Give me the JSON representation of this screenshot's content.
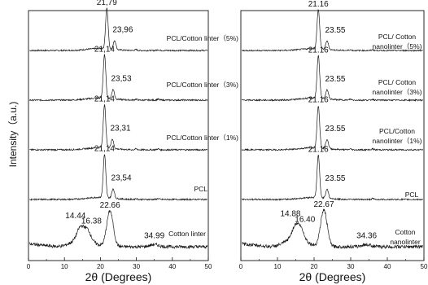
{
  "chart_data": [
    {
      "type": "line",
      "title": "",
      "xlabel": "2θ (Degrees)",
      "ylabel": "Intensity（a.u.)",
      "xlim": [
        0,
        50
      ],
      "xticks": [
        "0",
        "10",
        "20",
        "30",
        "40",
        "50"
      ],
      "grid": false,
      "series": [
        {
          "name": "PCL/Cotton linter（5%)",
          "type": "pcl",
          "peaks": [
            {
              "x": 21.79,
              "label": "21,79",
              "h": 1.0
            },
            {
              "x": 23.96,
              "label": "23,96",
              "h": 0.22
            }
          ]
        },
        {
          "name": "PCL/Cotton linter（3%)",
          "type": "pcl",
          "peaks": [
            {
              "x": 21.14,
              "label": "21,14",
              "h": 1.0
            },
            {
              "x": 23.53,
              "label": "23,53",
              "h": 0.22
            }
          ]
        },
        {
          "name": "PCL/Cotton linter（1%)",
          "type": "pcl",
          "peaks": [
            {
              "x": 21.14,
              "label": "21,14",
              "h": 1.0
            },
            {
              "x": 23.31,
              "label": "23,31",
              "h": 0.22
            }
          ]
        },
        {
          "name": "PCL",
          "type": "pcl",
          "peaks": [
            {
              "x": 21.14,
              "label": "21,14",
              "h": 1.0
            },
            {
              "x": 23.54,
              "label": "23,54",
              "h": 0.22
            }
          ]
        },
        {
          "name": "Cotton linter",
          "type": "cellulose",
          "peaks": [
            {
              "x": 14.44,
              "label": "14.44",
              "h": 0.3
            },
            {
              "x": 16.38,
              "label": "16.38",
              "h": 0.26
            },
            {
              "x": 22.66,
              "label": "22.66",
              "h": 1.0
            },
            {
              "x": 34.99,
              "label": "34.99",
              "h": 0.06
            }
          ]
        }
      ]
    },
    {
      "type": "line",
      "title": "",
      "xlabel": "2θ (Degrees)",
      "ylabel": "",
      "xlim": [
        0,
        50
      ],
      "xticks": [
        "0",
        "10",
        "20",
        "30",
        "40",
        "50"
      ],
      "grid": false,
      "series": [
        {
          "name": "PCL/ Cotton nanolinter（5%)",
          "type": "pcl",
          "peaks": [
            {
              "x": 21.16,
              "label": "21.16",
              "h": 1.0
            },
            {
              "x": 23.55,
              "label": "23.55",
              "h": 0.22
            }
          ]
        },
        {
          "name": "PCL/ Cotton nanolinter（3%)",
          "type": "pcl",
          "peaks": [
            {
              "x": 21.16,
              "label": "21.16",
              "h": 1.0
            },
            {
              "x": 23.55,
              "label": "23.55",
              "h": 0.22
            }
          ]
        },
        {
          "name": "PCL/Cotton nanolinter（1%)",
          "type": "pcl",
          "peaks": [
            {
              "x": 21.16,
              "label": "21.16",
              "h": 1.0
            },
            {
              "x": 23.55,
              "label": "23.55",
              "h": 0.22
            }
          ]
        },
        {
          "name": "PCL",
          "type": "pcl",
          "peaks": [
            {
              "x": 21.16,
              "label": "21.16",
              "h": 1.0
            },
            {
              "x": 23.55,
              "label": "23.55",
              "h": 0.22
            }
          ]
        },
        {
          "name": "Cotton nanolinter",
          "type": "cellulose",
          "peaks": [
            {
              "x": 14.88,
              "label": "14.88",
              "h": 0.3
            },
            {
              "x": 16.4,
              "label": "16.40",
              "h": 0.26
            },
            {
              "x": 22.67,
              "label": "22.67",
              "h": 1.0
            },
            {
              "x": 34.36,
              "label": "34.36",
              "h": 0.06
            }
          ]
        }
      ]
    }
  ]
}
